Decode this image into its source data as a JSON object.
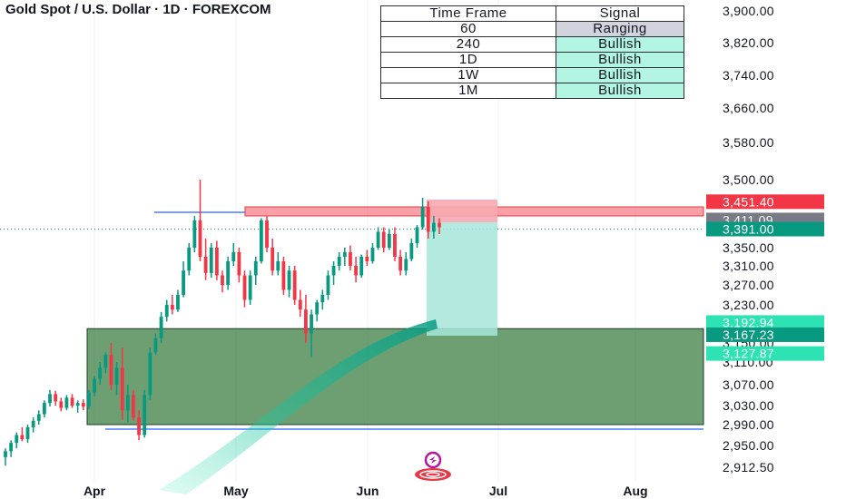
{
  "header": {
    "title": "Gold Spot / U.S. Dollar · 1D · FOREXCOM"
  },
  "signal_table": {
    "headers": [
      "Time Frame",
      "Signal"
    ],
    "rows": [
      {
        "timeframe": "60",
        "signal": "Ranging",
        "color": "#d1d4dc"
      },
      {
        "timeframe": "240",
        "signal": "Bullish",
        "color": "#b2f5e3"
      },
      {
        "timeframe": "1D",
        "signal": "Bullish",
        "color": "#b2f5e3"
      },
      {
        "timeframe": "1W",
        "signal": "Bullish",
        "color": "#b2f5e3"
      },
      {
        "timeframe": "1M",
        "signal": "Bullish",
        "color": "#b2f5e3"
      }
    ]
  },
  "colors": {
    "bull": "#089981",
    "bear": "#f23645",
    "demand_zone": "#3d7f43",
    "supply_zone": "#f7525f",
    "level_line": "#2962ff",
    "target_zone": "#a6e5d9",
    "stop_zone": "#f7a9b0"
  },
  "chart_data": {
    "type": "candlestick",
    "title": "Gold Spot / U.S. Dollar · 1D · FOREXCOM",
    "x_ticks": [
      "Apr",
      "May",
      "Jun",
      "Jul",
      "Aug"
    ],
    "y_ticks": [
      "3,900.00",
      "3,820.00",
      "3,740.00",
      "3,660.00",
      "3,580.00",
      "3,500.00",
      "3,350.00",
      "3,310.00",
      "3,270.00",
      "3,230.00",
      "3,150.00",
      "3,110.00",
      "3,070.00",
      "3,030.00",
      "2,990.00",
      "2,950.00",
      "2,912.50"
    ],
    "ylim": [
      2900,
      3910
    ],
    "price_tags": [
      {
        "value": 3451.4,
        "label": "3,451.40",
        "color": "#f23645"
      },
      {
        "value": 3411.09,
        "label": "3,411.09",
        "color": "#787b86"
      },
      {
        "value": 3391.0,
        "label": "3,391.00",
        "color": "#089981"
      },
      {
        "value": 3192.94,
        "label": "3,192.94",
        "color": "#2de3b3"
      },
      {
        "value": 3167.23,
        "label": "3,167.23",
        "color": "#089981"
      },
      {
        "value": 3127.87,
        "label": "3,127.87",
        "color": "#2de3b3"
      }
    ],
    "candles": [
      [
        2930,
        2945,
        2915,
        2940
      ],
      [
        2940,
        2960,
        2930,
        2955
      ],
      [
        2955,
        2975,
        2945,
        2970
      ],
      [
        2970,
        2985,
        2958,
        2962
      ],
      [
        2962,
        2990,
        2955,
        2985
      ],
      [
        2985,
        3005,
        2975,
        2998
      ],
      [
        2998,
        3020,
        2990,
        3012
      ],
      [
        3012,
        3040,
        3005,
        3035
      ],
      [
        3035,
        3060,
        3028,
        3052
      ],
      [
        3052,
        3058,
        3030,
        3038
      ],
      [
        3038,
        3045,
        3018,
        3025
      ],
      [
        3025,
        3050,
        3020,
        3045
      ],
      [
        3045,
        3052,
        3025,
        3030
      ],
      [
        3030,
        3040,
        3015,
        3035
      ],
      [
        3035,
        3042,
        3020,
        3028
      ],
      [
        3028,
        3060,
        3022,
        3055
      ],
      [
        3055,
        3085,
        3048,
        3080
      ],
      [
        3080,
        3110,
        3070,
        3100
      ],
      [
        3100,
        3130,
        3090,
        3125
      ],
      [
        3125,
        3150,
        3060,
        3070
      ],
      [
        3070,
        3110,
        3050,
        3100
      ],
      [
        3100,
        3140,
        3000,
        3020
      ],
      [
        3020,
        3070,
        2995,
        3050
      ],
      [
        3050,
        3060,
        2998,
        3005
      ],
      [
        3005,
        3020,
        2960,
        2970
      ],
      [
        2970,
        3060,
        2965,
        3050
      ],
      [
        3050,
        3140,
        3040,
        3130
      ],
      [
        3130,
        3170,
        3125,
        3160
      ],
      [
        3160,
        3215,
        3150,
        3205
      ],
      [
        3205,
        3240,
        3195,
        3230
      ],
      [
        3230,
        3250,
        3210,
        3220
      ],
      [
        3220,
        3260,
        3215,
        3250
      ],
      [
        3250,
        3320,
        3245,
        3300
      ],
      [
        3300,
        3360,
        3290,
        3350
      ],
      [
        3350,
        3420,
        3340,
        3410
      ],
      [
        3410,
        3500,
        3320,
        3330
      ],
      [
        3330,
        3370,
        3280,
        3295
      ],
      [
        3295,
        3360,
        3285,
        3350
      ],
      [
        3350,
        3365,
        3280,
        3290
      ],
      [
        3290,
        3300,
        3255,
        3270
      ],
      [
        3270,
        3330,
        3260,
        3320
      ],
      [
        3320,
        3360,
        3310,
        3340
      ],
      [
        3340,
        3350,
        3275,
        3290
      ],
      [
        3290,
        3300,
        3225,
        3240
      ],
      [
        3240,
        3300,
        3230,
        3290
      ],
      [
        3290,
        3330,
        3270,
        3320
      ],
      [
        3320,
        3415,
        3315,
        3410
      ],
      [
        3410,
        3420,
        3340,
        3350
      ],
      [
        3350,
        3370,
        3290,
        3300
      ],
      [
        3300,
        3340,
        3290,
        3320
      ],
      [
        3320,
        3330,
        3250,
        3260
      ],
      [
        3260,
        3310,
        3245,
        3300
      ],
      [
        3300,
        3310,
        3230,
        3240
      ],
      [
        3240,
        3260,
        3205,
        3220
      ],
      [
        3220,
        3250,
        3150,
        3170
      ],
      [
        3170,
        3220,
        3120,
        3210
      ],
      [
        3210,
        3240,
        3195,
        3235
      ],
      [
        3235,
        3260,
        3220,
        3250
      ],
      [
        3250,
        3300,
        3240,
        3290
      ],
      [
        3290,
        3320,
        3270,
        3310
      ],
      [
        3310,
        3340,
        3300,
        3330
      ],
      [
        3330,
        3350,
        3310,
        3340
      ],
      [
        3340,
        3355,
        3300,
        3310
      ],
      [
        3310,
        3330,
        3275,
        3290
      ],
      [
        3290,
        3335,
        3285,
        3330
      ],
      [
        3330,
        3345,
        3310,
        3320
      ],
      [
        3320,
        3360,
        3315,
        3350
      ],
      [
        3350,
        3395,
        3345,
        3385
      ],
      [
        3385,
        3395,
        3340,
        3350
      ],
      [
        3350,
        3390,
        3345,
        3380
      ],
      [
        3380,
        3395,
        3320,
        3330
      ],
      [
        3330,
        3345,
        3290,
        3300
      ],
      [
        3300,
        3340,
        3290,
        3325
      ],
      [
        3325,
        3370,
        3320,
        3360
      ],
      [
        3360,
        3400,
        3350,
        3395
      ],
      [
        3395,
        3460,
        3390,
        3440
      ],
      [
        3440,
        3452,
        3370,
        3385
      ],
      [
        3385,
        3420,
        3370,
        3405
      ],
      [
        3405,
        3415,
        3380,
        3395
      ]
    ],
    "zones": [
      {
        "name": "demand",
        "from": 2990,
        "to": 3180
      },
      {
        "name": "supply",
        "from": 3420,
        "to": 3440
      }
    ]
  }
}
